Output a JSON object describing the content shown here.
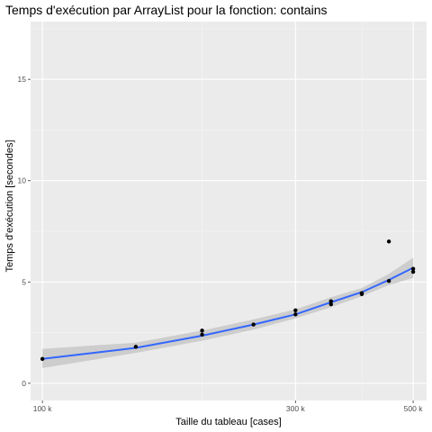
{
  "chart_data": {
    "type": "scatter",
    "title": "Temps d'exécution par ArrayList pour la fonction: contains",
    "xlabel": "Taille du tableau [cases]",
    "ylabel": "Temps d'exécution [secondes]",
    "x_scale": "log10",
    "xlim": [
      95000,
      530000
    ],
    "ylim": [
      -0.85,
      17.85
    ],
    "x_ticks": [
      {
        "value": 100000,
        "label": "100 k"
      },
      {
        "value": 300000,
        "label": "300 k"
      },
      {
        "value": 500000,
        "label": "500 k"
      }
    ],
    "x_minor_ticks": [
      200000,
      400000
    ],
    "y_ticks": [
      {
        "value": 0,
        "label": "0"
      },
      {
        "value": 5,
        "label": "5"
      },
      {
        "value": 10,
        "label": "10"
      },
      {
        "value": 15,
        "label": "15"
      }
    ],
    "y_minor_ticks": [
      2.5,
      7.5,
      12.5,
      17.5
    ],
    "grid": true,
    "points": [
      {
        "x": 100000,
        "y": 1.2
      },
      {
        "x": 150000,
        "y": 1.8
      },
      {
        "x": 200000,
        "y": 2.4
      },
      {
        "x": 200000,
        "y": 2.6
      },
      {
        "x": 250000,
        "y": 2.9
      },
      {
        "x": 300000,
        "y": 3.4
      },
      {
        "x": 300000,
        "y": 3.6
      },
      {
        "x": 350000,
        "y": 3.9
      },
      {
        "x": 350000,
        "y": 4.05
      },
      {
        "x": 400000,
        "y": 4.4
      },
      {
        "x": 400000,
        "y": 4.45
      },
      {
        "x": 450000,
        "y": 5.05
      },
      {
        "x": 450000,
        "y": 7.0
      },
      {
        "x": 500000,
        "y": 5.5
      },
      {
        "x": 500000,
        "y": 5.65
      }
    ],
    "smooth_line": [
      {
        "x": 100000,
        "y": 1.2,
        "lo": 0.75,
        "hi": 1.7
      },
      {
        "x": 150000,
        "y": 1.75,
        "lo": 1.5,
        "hi": 2.0
      },
      {
        "x": 200000,
        "y": 2.35,
        "lo": 2.1,
        "hi": 2.6
      },
      {
        "x": 250000,
        "y": 2.9,
        "lo": 2.65,
        "hi": 3.15
      },
      {
        "x": 300000,
        "y": 3.4,
        "lo": 3.2,
        "hi": 3.65
      },
      {
        "x": 350000,
        "y": 4.0,
        "lo": 3.75,
        "hi": 4.25
      },
      {
        "x": 400000,
        "y": 4.5,
        "lo": 4.3,
        "hi": 4.7
      },
      {
        "x": 450000,
        "y": 5.1,
        "lo": 4.85,
        "hi": 5.4
      },
      {
        "x": 500000,
        "y": 5.7,
        "lo": 5.2,
        "hi": 6.2
      }
    ],
    "colors": {
      "panel_background": "#ebebeb",
      "grid_major": "#ffffff",
      "grid_minor": "#f5f5f5",
      "points": "#000000",
      "line": "#3366ff",
      "ribbon": "#c8c8c8",
      "tick": "#333333"
    }
  }
}
